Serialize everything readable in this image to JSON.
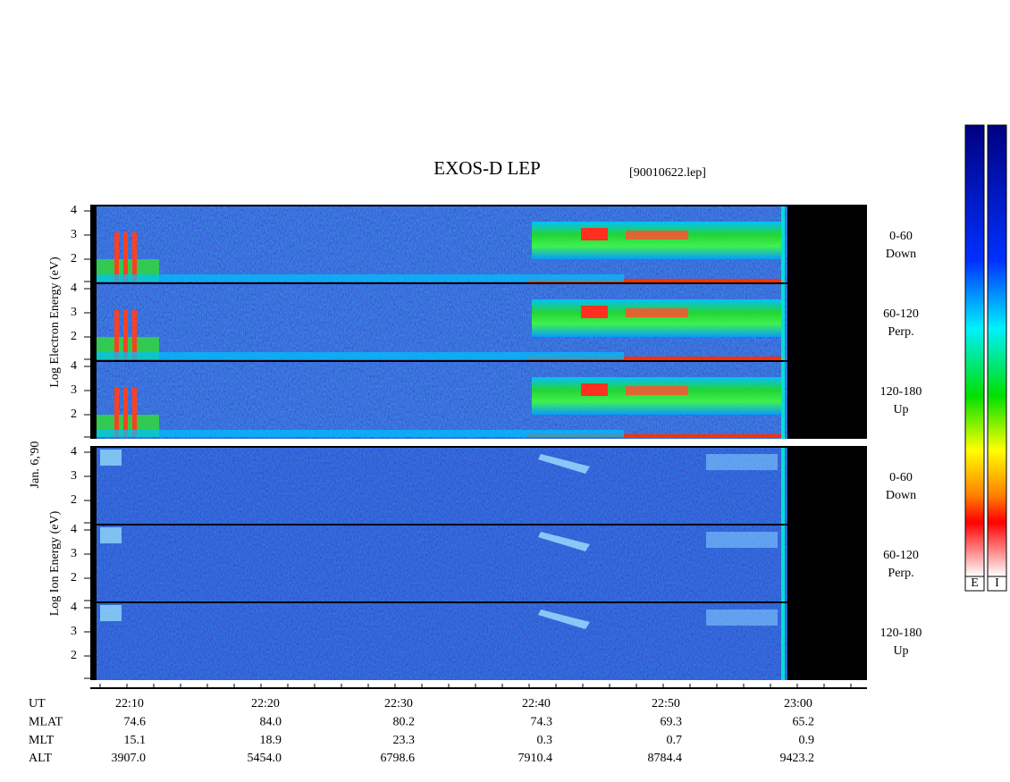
{
  "header": {
    "title": "EXOS-D LEP",
    "file": "[90010622.lep]"
  },
  "date": "Jan. 6,'90",
  "panels": [
    {
      "axis_label": "Log  Electron  Energy (eV)",
      "yticks": [
        "4",
        "3",
        "2"
      ],
      "channels": [
        {
          "range": "0-60",
          "direction": "Down"
        },
        {
          "range": "60-120",
          "direction": "Perp."
        },
        {
          "range": "120-180",
          "direction": "Up"
        }
      ]
    },
    {
      "axis_label": "Log  Ion  Energy (eV)",
      "yticks": [
        "4",
        "3",
        "2"
      ],
      "channels": [
        {
          "range": "0-60",
          "direction": "Down"
        },
        {
          "range": "60-120",
          "direction": "Perp."
        },
        {
          "range": "120-180",
          "direction": "Up"
        }
      ]
    }
  ],
  "time_axis": {
    "rows": [
      {
        "label": "UT",
        "values": [
          "22:10",
          "22:20",
          "22:30",
          "22:40",
          "22:50",
          "23:00"
        ]
      },
      {
        "label": "MLAT",
        "values": [
          "74.6",
          "84.0",
          "80.2",
          "74.3",
          "69.3",
          "65.2"
        ]
      },
      {
        "label": "MLT",
        "values": [
          "15.1",
          "18.9",
          "23.3",
          "0.3",
          "0.7",
          "0.9"
        ]
      },
      {
        "label": "ALT",
        "values": [
          "3907.0",
          "5454.0",
          "6798.6",
          "7910.4",
          "8784.4",
          "9423.2"
        ]
      }
    ]
  },
  "colorbar": {
    "labels": [
      "E",
      "I"
    ]
  }
}
